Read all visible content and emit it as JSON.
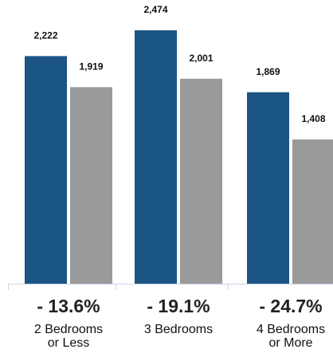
{
  "chart_data": {
    "type": "bar",
    "categories": [
      "2 Bedrooms or Less",
      "3 Bedrooms",
      "4 Bedrooms or More"
    ],
    "category_lines": [
      [
        "2 Bedrooms",
        "or Less"
      ],
      [
        "3 Bedrooms"
      ],
      [
        "4 Bedrooms",
        "or More"
      ]
    ],
    "series": [
      {
        "values": [
          2222,
          2474,
          1869
        ],
        "labels": [
          "2,222",
          "2,474",
          "1,869"
        ],
        "color": "#1a5585"
      },
      {
        "values": [
          1919,
          2001,
          1408
        ],
        "labels": [
          "1,919",
          "2,001",
          "1,408"
        ],
        "color": "#9a9a9a"
      }
    ],
    "changes": [
      "- 13.6%",
      "- 19.1%",
      "- 24.7%"
    ],
    "ylim": [
      0,
      2474
    ],
    "grid": false,
    "legend": "none",
    "baseline_color": "#c9d3e6"
  }
}
